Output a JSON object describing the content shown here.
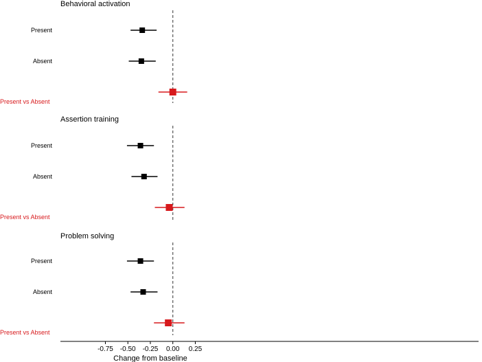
{
  "chart_data": {
    "type": "forest",
    "xlabel": "Change from baseline",
    "x_ticks": [
      "-0.75",
      "-0.50",
      "-0.25",
      "0.00",
      "0.25"
    ],
    "x_tick_values": [
      -0.75,
      -0.5,
      -0.25,
      0,
      0.25
    ],
    "xlim": [
      -1.25,
      3.4
    ],
    "reference_line": 0,
    "colors": {
      "estimate": "#000000",
      "contrast": "#d7191c",
      "reference": "#555555"
    },
    "panels": [
      {
        "title": "Behavioral activation",
        "rows": [
          {
            "label": "Present",
            "estimate": -0.34,
            "lower": -0.47,
            "upper": -0.18,
            "type": "estimate"
          },
          {
            "label": "Absent",
            "estimate": -0.35,
            "lower": -0.49,
            "upper": -0.19,
            "type": "estimate"
          },
          {
            "label": "Present vs Absent",
            "estimate": 0.0,
            "lower": -0.16,
            "upper": 0.16,
            "type": "contrast"
          }
        ]
      },
      {
        "title": "Assertion training",
        "rows": [
          {
            "label": "Present",
            "estimate": -0.36,
            "lower": -0.51,
            "upper": -0.21,
            "type": "estimate"
          },
          {
            "label": "Absent",
            "estimate": -0.32,
            "lower": -0.46,
            "upper": -0.17,
            "type": "estimate"
          },
          {
            "label": "Present vs Absent",
            "estimate": -0.04,
            "lower": -0.2,
            "upper": 0.13,
            "type": "contrast"
          }
        ]
      },
      {
        "title": "Problem solving",
        "rows": [
          {
            "label": "Present",
            "estimate": -0.36,
            "lower": -0.51,
            "upper": -0.21,
            "type": "estimate"
          },
          {
            "label": "Absent",
            "estimate": -0.33,
            "lower": -0.47,
            "upper": -0.17,
            "type": "estimate"
          },
          {
            "label": "Present vs Absent",
            "estimate": -0.05,
            "lower": -0.21,
            "upper": 0.13,
            "type": "contrast"
          }
        ]
      }
    ]
  }
}
